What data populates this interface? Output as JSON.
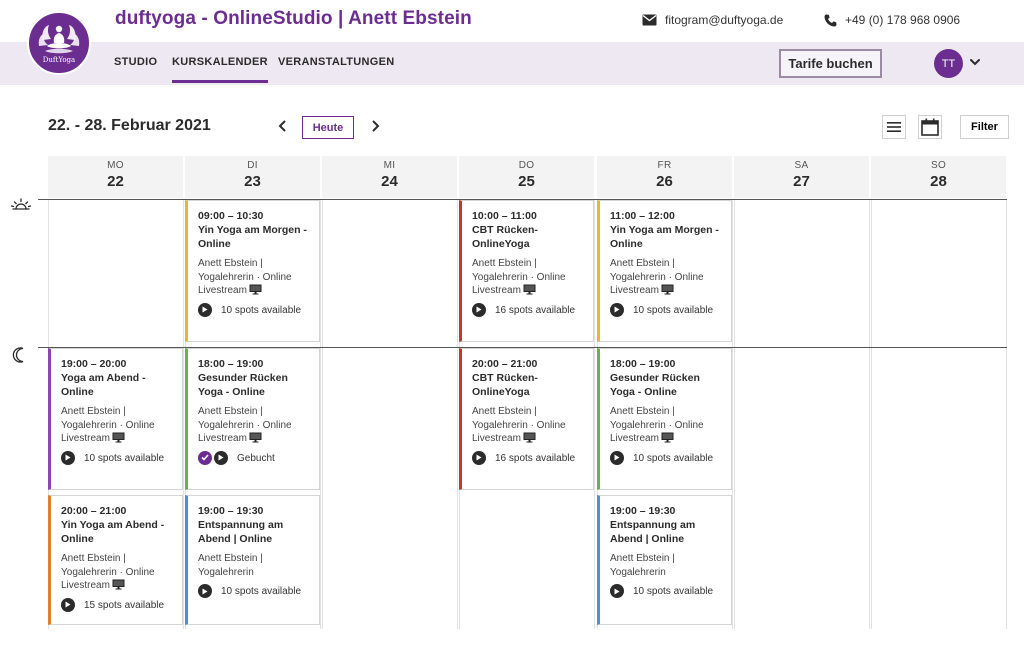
{
  "header": {
    "logo_text": "DuftYoga",
    "brand_title": "duftyoga - OnlineStudio | Anett Ebstein",
    "email": "fitogram@duftyoga.de",
    "phone": "+49 (0) 178 968 0906",
    "nav": [
      {
        "label": "STUDIO"
      },
      {
        "label": "KURSKALENDER"
      },
      {
        "label": "VERANSTALTUNGEN"
      }
    ],
    "tarife_label": "Tarife buchen",
    "avatar_initials": "TT"
  },
  "toolbar": {
    "week_title": "22. - 28. Februar 2021",
    "today_label": "Heute",
    "filter_label": "Filter"
  },
  "days": [
    {
      "dow": "MO",
      "num": "22"
    },
    {
      "dow": "DI",
      "num": "23"
    },
    {
      "dow": "MI",
      "num": "24"
    },
    {
      "dow": "DO",
      "num": "25"
    },
    {
      "dow": "FR",
      "num": "26"
    },
    {
      "dow": "SA",
      "num": "27"
    },
    {
      "dow": "SO",
      "num": "28"
    }
  ],
  "classes": [
    {
      "day": 1,
      "time": "09:00 – 10:30",
      "title": "Yin Yoga am Morgen - Online",
      "meta": "Anett Ebstein | Yogalehrerin · Online Livestream",
      "status": "10 spots available",
      "color": "#e8b53a",
      "booked": false,
      "monitor": true
    },
    {
      "day": 3,
      "time": "10:00 – 11:00",
      "title": "CBT Rücken-OnlineYoga",
      "meta": "Anett Ebstein | Yogalehrerin · Online Livestream",
      "status": "16 spots available",
      "color": "#c0392b",
      "booked": false,
      "monitor": true
    },
    {
      "day": 4,
      "time": "11:00 – 12:00",
      "title": "Yin Yoga am Morgen - Online",
      "meta": "Anett Ebstein | Yogalehrerin · Online Livestream",
      "status": "10 spots available",
      "color": "#e8b53a",
      "booked": false,
      "monitor": true
    },
    {
      "day": 0,
      "time": "19:00 – 20:00",
      "title": "Yoga am Abend - Online",
      "meta": "Anett Ebstein | Yogalehrerin · Online Livestream",
      "status": "10 spots available",
      "color": "#8e44ad",
      "booked": false,
      "monitor": true
    },
    {
      "day": 1,
      "time": "18:00 – 19:00",
      "title": "Gesunder Rücken Yoga - Online",
      "meta": "Anett Ebstein | Yogalehrerin · Online Livestream",
      "status": "Gebucht",
      "color": "#6ab04c",
      "booked": true,
      "monitor": true
    },
    {
      "day": 3,
      "time": "20:00 – 21:00",
      "title": "CBT Rücken-OnlineYoga",
      "meta": "Anett Ebstein | Yogalehrerin · Online Livestream",
      "status": "16 spots available",
      "color": "#c0392b",
      "booked": false,
      "monitor": true
    },
    {
      "day": 4,
      "time": "18:00 – 19:00",
      "title": "Gesunder Rücken Yoga - Online",
      "meta": "Anett Ebstein | Yogalehrerin · Online Livestream",
      "status": "10 spots available",
      "color": "#6ab04c",
      "booked": false,
      "monitor": true
    },
    {
      "day": 0,
      "time": "20:00 – 21:00",
      "title": "Yin Yoga am Abend - Online",
      "meta": "Anett Ebstein | Yogalehrerin · Online Livestream",
      "status": "15 spots available",
      "color": "#d9822b",
      "booked": false,
      "monitor": true
    },
    {
      "day": 1,
      "time": "19:00 – 19:30",
      "title": "Entspannung am Abend | Online",
      "meta": "Anett Ebstein | Yogalehrerin",
      "status": "10 spots available",
      "color": "#4a90d9",
      "booked": false,
      "monitor": false
    },
    {
      "day": 4,
      "time": "19:00 – 19:30",
      "title": "Entspannung am Abend | Online",
      "meta": "Anett Ebstein | Yogalehrerin",
      "status": "10 spots available",
      "color": "#4a90d9",
      "booked": false,
      "monitor": false
    }
  ]
}
